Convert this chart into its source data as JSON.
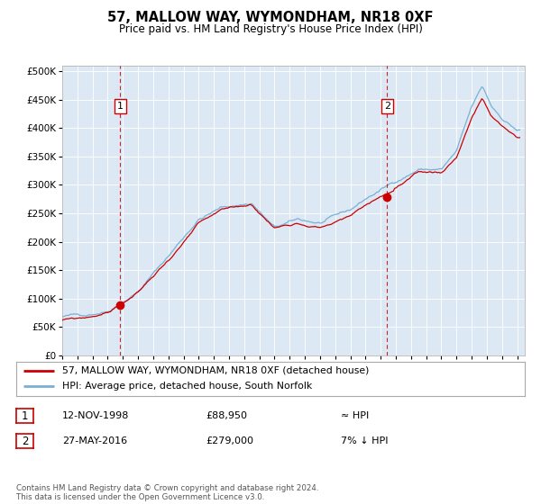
{
  "title": "57, MALLOW WAY, WYMONDHAM, NR18 0XF",
  "subtitle": "Price paid vs. HM Land Registry's House Price Index (HPI)",
  "legend_line1": "57, MALLOW WAY, WYMONDHAM, NR18 0XF (detached house)",
  "legend_line2": "HPI: Average price, detached house, South Norfolk",
  "annotation1_date": "12-NOV-1998",
  "annotation1_price": "£88,950",
  "annotation1_note": "≈ HPI",
  "annotation2_date": "27-MAY-2016",
  "annotation2_price": "£279,000",
  "annotation2_note": "7% ↓ HPI",
  "footnote": "Contains HM Land Registry data © Crown copyright and database right 2024.\nThis data is licensed under the Open Government Licence v3.0.",
  "background_color": "#dce9f5",
  "red_line_color": "#cc0000",
  "blue_line_color": "#7ab0d4",
  "marker_color": "#cc0000",
  "vline_color": "#cc0000",
  "ylim": [
    0,
    510000
  ],
  "yticks": [
    0,
    50000,
    100000,
    150000,
    200000,
    250000,
    300000,
    350000,
    400000,
    450000,
    500000
  ],
  "sale1_year": 1998.87,
  "sale1_price": 88950,
  "sale2_year": 2016.41,
  "sale2_price": 279000,
  "xlim_start": 1995,
  "xlim_end": 2025.5
}
